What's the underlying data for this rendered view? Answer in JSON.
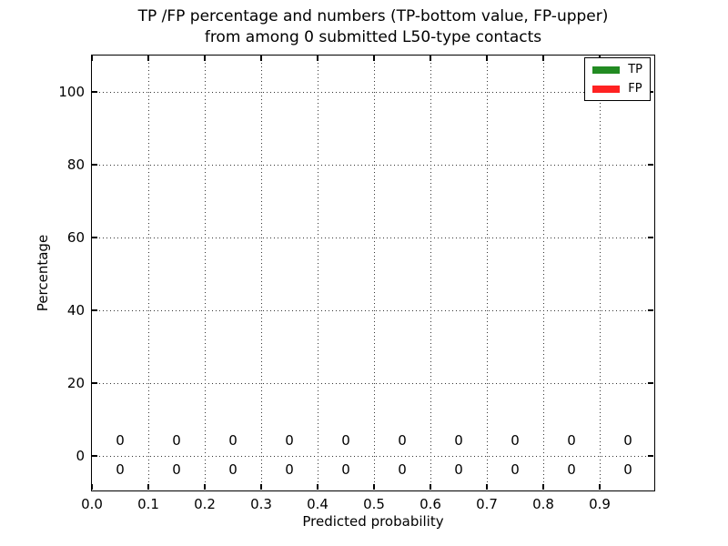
{
  "chart_data": {
    "type": "bar",
    "title_lines": [
      "TP /FP percentage and numbers (TP-bottom value, FP-upper)",
      "from among 0 submitted L50-type contacts"
    ],
    "submitted_contacts": 0,
    "xlabel": "Predicted probability",
    "ylabel": "Percentage",
    "xlim": [
      0.0,
      1.0
    ],
    "ylim": [
      -10,
      110
    ],
    "x_ticks": [
      0.0,
      0.1,
      0.2,
      0.3,
      0.4,
      0.5,
      0.6,
      0.7,
      0.8,
      0.9
    ],
    "x_tick_labels": [
      "0.0",
      "0.1",
      "0.2",
      "0.3",
      "0.4",
      "0.5",
      "0.6",
      "0.7",
      "0.8",
      "0.9"
    ],
    "y_ticks": [
      0,
      20,
      40,
      60,
      80,
      100
    ],
    "y_tick_labels": [
      "0",
      "20",
      "40",
      "60",
      "80",
      "100"
    ],
    "grid": {
      "style": "dotted",
      "color": "#333333"
    },
    "bin_centers": [
      0.05,
      0.15,
      0.25,
      0.35,
      0.45,
      0.55,
      0.65,
      0.75,
      0.85,
      0.95
    ],
    "series": [
      {
        "name": "TP",
        "color": "#228B22",
        "values": [
          0,
          0,
          0,
          0,
          0,
          0,
          0,
          0,
          0,
          0
        ],
        "annotation_row": "below-zero-line"
      },
      {
        "name": "FP",
        "color": "#FF2222",
        "values": [
          0,
          0,
          0,
          0,
          0,
          0,
          0,
          0,
          0,
          0
        ],
        "annotation_row": "above-zero-line"
      }
    ],
    "legend": {
      "position": "upper right",
      "entries": [
        {
          "label": "TP",
          "color": "#228B22"
        },
        {
          "label": "FP",
          "color": "#FF2222"
        }
      ]
    }
  }
}
